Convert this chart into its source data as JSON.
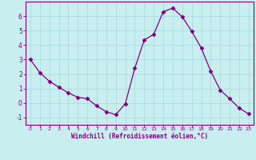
{
  "x": [
    0,
    1,
    2,
    3,
    4,
    5,
    6,
    7,
    8,
    9,
    10,
    11,
    12,
    13,
    14,
    15,
    16,
    17,
    18,
    19,
    20,
    21,
    22,
    23
  ],
  "y": [
    3.0,
    2.1,
    1.5,
    1.1,
    0.7,
    0.4,
    0.3,
    -0.2,
    -0.6,
    -0.8,
    -0.05,
    2.4,
    4.35,
    4.75,
    6.3,
    6.55,
    5.95,
    4.95,
    3.8,
    2.2,
    0.9,
    0.3,
    -0.35,
    -0.75
  ],
  "line_color": "#800080",
  "marker": "D",
  "marker_size": 2.5,
  "bg_color": "#c8eef0",
  "grid_color": "#aadddd",
  "xlabel": "Windchill (Refroidissement éolien,°C)",
  "xlabel_color": "#800080",
  "tick_color": "#800080",
  "spine_color": "#800080",
  "xlim": [
    -0.5,
    23.5
  ],
  "ylim": [
    -1.5,
    7.0
  ],
  "yticks": [
    -1,
    0,
    1,
    2,
    3,
    4,
    5,
    6
  ],
  "xticks": [
    0,
    1,
    2,
    3,
    4,
    5,
    6,
    7,
    8,
    9,
    10,
    11,
    12,
    13,
    14,
    15,
    16,
    17,
    18,
    19,
    20,
    21,
    22,
    23
  ],
  "xtick_labels": [
    "0",
    "1",
    "2",
    "3",
    "4",
    "5",
    "6",
    "7",
    "8",
    "9",
    "10",
    "11",
    "12",
    "13",
    "14",
    "15",
    "16",
    "17",
    "18",
    "19",
    "20",
    "21",
    "22",
    "23"
  ]
}
